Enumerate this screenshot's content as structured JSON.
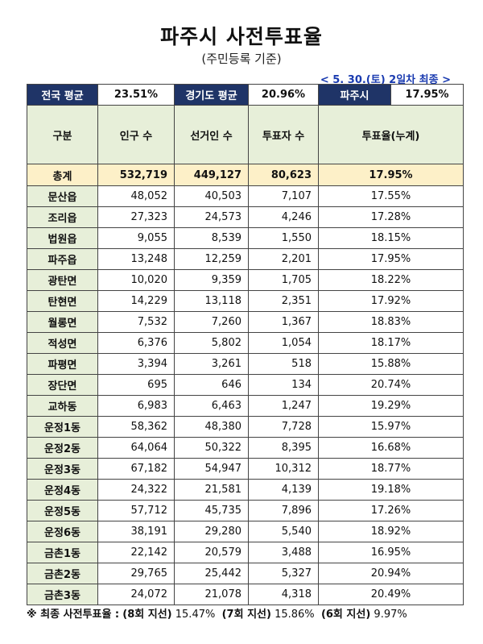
{
  "title": "파주시 사전투표율",
  "subtitle": "(주민등록 기준)",
  "date_note": "< 5. 30.(토) 2일차 최종 >",
  "summary": {
    "national_label": "전국 평균",
    "national_value": "23.51%",
    "gyeonggi_label": "경기도 평균",
    "gyeonggi_value": "20.96%",
    "paju_label": "파주시",
    "paju_value": "17.95%"
  },
  "headers": [
    "구분",
    "인구 수",
    "선거인 수",
    "투표자 수",
    "투표율(누계)"
  ],
  "total": {
    "name": "총계",
    "population": "532,719",
    "electors": "449,127",
    "voters": "80,623",
    "rate": "17.95%"
  },
  "rows": [
    {
      "name": "문산읍",
      "population": "48,052",
      "electors": "40,503",
      "voters": "7,107",
      "rate": "17.55%"
    },
    {
      "name": "조리읍",
      "population": "27,323",
      "electors": "24,573",
      "voters": "4,246",
      "rate": "17.28%"
    },
    {
      "name": "법원읍",
      "population": "9,055",
      "electors": "8,539",
      "voters": "1,550",
      "rate": "18.15%"
    },
    {
      "name": "파주읍",
      "population": "13,248",
      "electors": "12,259",
      "voters": "2,201",
      "rate": "17.95%"
    },
    {
      "name": "광탄면",
      "population": "10,020",
      "electors": "9,359",
      "voters": "1,705",
      "rate": "18.22%"
    },
    {
      "name": "탄현면",
      "population": "14,229",
      "electors": "13,118",
      "voters": "2,351",
      "rate": "17.92%"
    },
    {
      "name": "월롱면",
      "population": "7,532",
      "electors": "7,260",
      "voters": "1,367",
      "rate": "18.83%"
    },
    {
      "name": "적성면",
      "population": "6,376",
      "electors": "5,802",
      "voters": "1,054",
      "rate": "18.17%"
    },
    {
      "name": "파평면",
      "population": "3,394",
      "electors": "3,261",
      "voters": "518",
      "rate": "15.88%"
    },
    {
      "name": "장단면",
      "population": "695",
      "electors": "646",
      "voters": "134",
      "rate": "20.74%"
    },
    {
      "name": "교하동",
      "population": "6,983",
      "electors": "6,463",
      "voters": "1,247",
      "rate": "19.29%"
    },
    {
      "name": "운정1동",
      "population": "58,362",
      "electors": "48,380",
      "voters": "7,728",
      "rate": "15.97%"
    },
    {
      "name": "운정2동",
      "population": "64,064",
      "electors": "50,322",
      "voters": "8,395",
      "rate": "16.68%"
    },
    {
      "name": "운정3동",
      "population": "67,182",
      "electors": "54,947",
      "voters": "10,312",
      "rate": "18.77%"
    },
    {
      "name": "운정4동",
      "population": "24,322",
      "electors": "21,581",
      "voters": "4,139",
      "rate": "19.18%"
    },
    {
      "name": "운정5동",
      "population": "57,712",
      "electors": "45,735",
      "voters": "7,896",
      "rate": "17.26%"
    },
    {
      "name": "운정6동",
      "population": "38,191",
      "electors": "29,280",
      "voters": "5,540",
      "rate": "18.92%"
    },
    {
      "name": "금촌1동",
      "population": "22,142",
      "electors": "20,579",
      "voters": "3,488",
      "rate": "16.95%"
    },
    {
      "name": "금촌2동",
      "population": "29,765",
      "electors": "25,442",
      "voters": "5,327",
      "rate": "20.94%"
    },
    {
      "name": "금촌3동",
      "population": "24,072",
      "electors": "21,078",
      "voters": "4,318",
      "rate": "20.49%"
    }
  ],
  "footnote": {
    "prefix": "※ 최종 사전투표율 :",
    "items": [
      {
        "label": "(8회 지선)",
        "value": "15.47%"
      },
      {
        "label": "(7회 지선)",
        "value": "15.86%"
      },
      {
        "label": "(6회 지선)",
        "value": "9.97%"
      }
    ]
  }
}
